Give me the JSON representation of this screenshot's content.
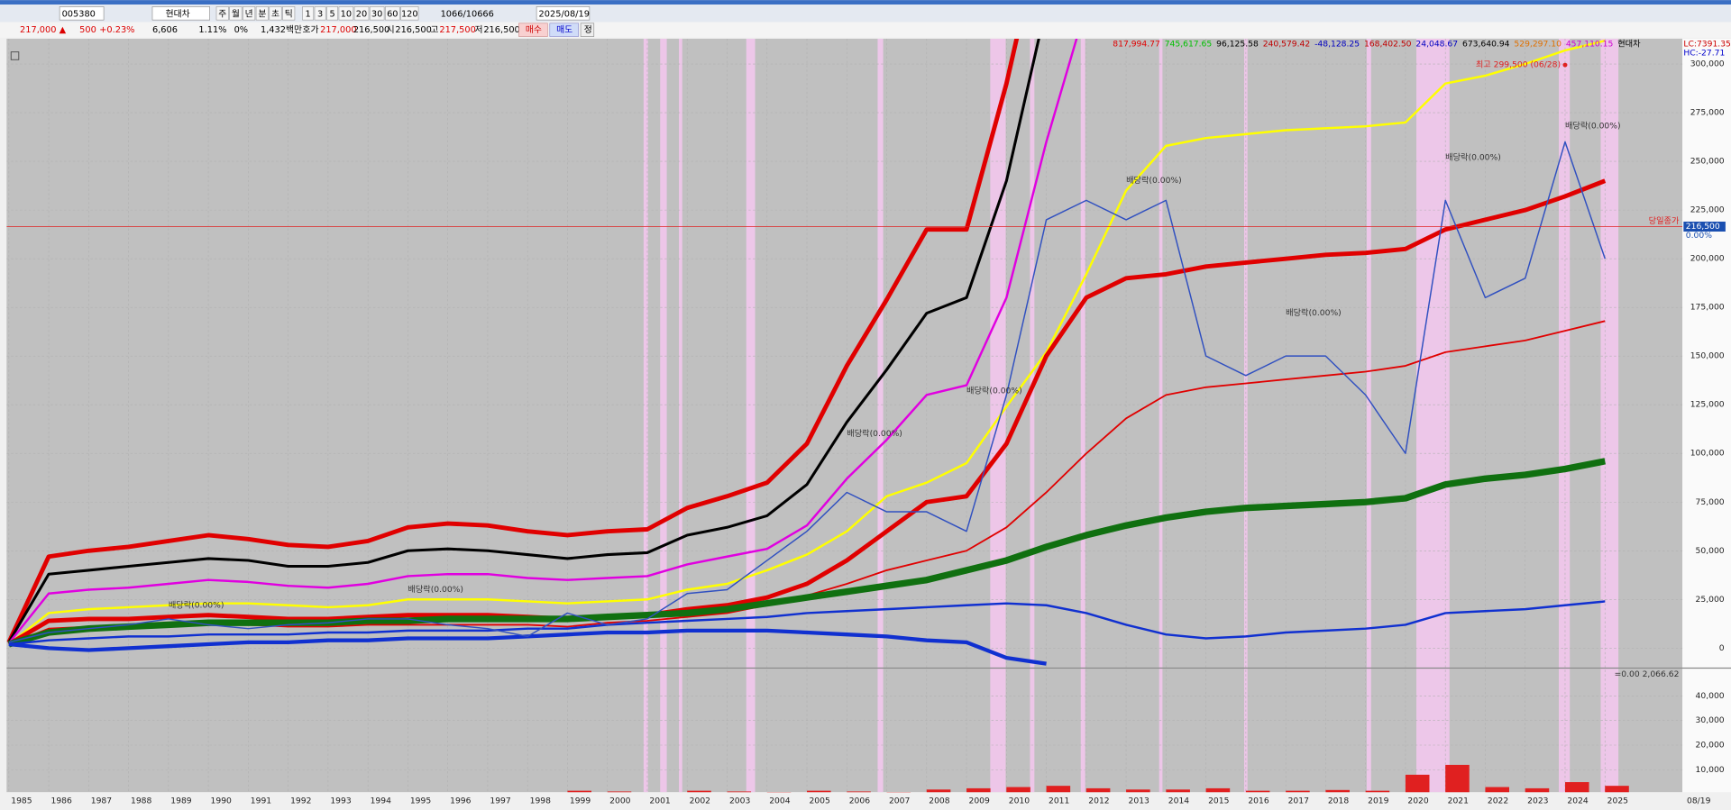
{
  "toolbar": {
    "code": "005380",
    "name": "현대차",
    "periods": [
      "주",
      "월",
      "년",
      "분",
      "초",
      "틱"
    ],
    "intervals": [
      "1",
      "3",
      "5",
      "10",
      "20",
      "30",
      "60",
      "120"
    ],
    "count": "1066/10666",
    "date": "2025/08/19"
  },
  "info": {
    "price": "217,000 ▲",
    "change": "500",
    "rate": "+0.23%",
    "volume": "6,606",
    "ratio": "1.11%",
    "pct": "0%",
    "amount": "1,432백만",
    "quote_label": "호가",
    "quote": "217,000",
    "quote2": "216,500",
    "open_label": "시",
    "open": "216,500",
    "high_label": "고",
    "high": "217,500",
    "low_label": "저",
    "low": "216,500",
    "buy": "매수",
    "sell": "매도",
    "fix": "정"
  },
  "chart_data": {
    "type": "line",
    "indicators": [
      {
        "text": "817,994.77",
        "color": "#e00000"
      },
      {
        "text": "745,617.65",
        "color": "#00c000"
      },
      {
        "text": "96,125.58",
        "color": "#000000"
      },
      {
        "text": "240,579.42",
        "color": "#c00000"
      },
      {
        "text": "-48,128.25",
        "color": "#0000c0"
      },
      {
        "text": "168,402.50",
        "color": "#c00000"
      },
      {
        "text": "24,048.67",
        "color": "#0000c0"
      },
      {
        "text": "673,640.94",
        "color": "#000000"
      },
      {
        "text": "529,297.10",
        "color": "#e07000"
      },
      {
        "text": "457,110.15",
        "color": "#d000d0"
      },
      {
        "text": "현대차",
        "color": "#000000"
      }
    ],
    "lc": "LC:7391.35",
    "hc": "HC:-27.71",
    "x": [
      1985,
      1986,
      1987,
      1988,
      1989,
      1990,
      1991,
      1992,
      1993,
      1994,
      1995,
      1996,
      1997,
      1998,
      1999,
      2000,
      2001,
      2002,
      2003,
      2004,
      2005,
      2006,
      2007,
      2008,
      2009,
      2010,
      2011,
      2012,
      2013,
      2014,
      2015,
      2016,
      2017,
      2018,
      2019,
      2020,
      2021,
      2022,
      2023,
      2024,
      2025
    ],
    "xlim": [
      1985,
      2026
    ],
    "xticks": [
      1985,
      1986,
      1987,
      1988,
      1989,
      1990,
      1991,
      1992,
      1993,
      1994,
      1995,
      1996,
      1997,
      1998,
      1999,
      2000,
      2001,
      2002,
      2003,
      2004,
      2005,
      2006,
      2007,
      2008,
      2009,
      2010,
      2011,
      2012,
      2013,
      2014,
      2015,
      2016,
      2017,
      2018,
      2019,
      2020,
      2021,
      2022,
      2023,
      2024,
      2025
    ],
    "date_label": "08/19",
    "ylim": [
      -10000,
      313000
    ],
    "yticks": [
      0,
      {
        "value": 25000,
        "label": "25,000"
      },
      {
        "value": 50000,
        "label": "50,000"
      },
      {
        "value": 75000,
        "label": "75,000"
      },
      {
        "value": 100000,
        "label": "100,000"
      },
      {
        "value": 125000,
        "label": "125,000"
      },
      {
        "value": 150000,
        "label": "150,000"
      },
      {
        "value": 175000,
        "label": "175,000"
      },
      {
        "value": 200000,
        "label": "200,000"
      },
      {
        "value": 225000,
        "label": "225,000"
      },
      {
        "value": 250000,
        "label": "250,000"
      },
      {
        "value": 275000,
        "label": "275,000"
      },
      {
        "value": 300000,
        "label": "300,000"
      }
    ],
    "grid": true,
    "current": {
      "value": 216500,
      "label": "216,500",
      "text": "당일종가",
      "rate": "0.00%",
      "color": "#e02020"
    },
    "high_note": {
      "text": "최고 299,500 (06/28)",
      "x": 2024,
      "y": 299500,
      "color": "#e02020"
    },
    "annotations": [
      {
        "text": "배당락(0.00%)",
        "x": 2006,
        "y": 110000
      },
      {
        "text": "배당락(0.00%)",
        "x": 2009,
        "y": 132000
      },
      {
        "text": "배당락(0.00%)",
        "x": 2013,
        "y": 240000
      },
      {
        "text": "배당락(0.00%)",
        "x": 2017,
        "y": 172000
      },
      {
        "text": "배당락(0.00%)",
        "x": 2021,
        "y": 252000
      },
      {
        "text": "배당락(0.00%)",
        "x": 2024,
        "y": 268000
      },
      {
        "text": "배당락(0.00%)",
        "x": 1989,
        "y": 22000
      },
      {
        "text": "배당락(0.00%)",
        "x": 1995,
        "y": 30000
      }
    ],
    "series": [
      {
        "name": "upper1",
        "color": "#e00000",
        "width": 4,
        "values": [
          3000,
          47000,
          50000,
          52000,
          55000,
          58000,
          56000,
          53000,
          52000,
          55000,
          62000,
          64000,
          63000,
          60000,
          58000,
          60000,
          61000,
          72000,
          78000,
          85000,
          105000,
          145000,
          179000,
          215000,
          215000,
          290000,
          380000,
          null,
          null,
          null,
          null,
          null,
          null,
          null,
          null,
          null,
          null,
          null,
          null,
          null,
          null
        ]
      },
      {
        "name": "upper2",
        "color": "#000000",
        "width": 2.5,
        "values": [
          3000,
          38000,
          40000,
          42000,
          44000,
          46000,
          45000,
          42000,
          42000,
          44000,
          50000,
          51000,
          50000,
          48000,
          46000,
          48000,
          49000,
          58000,
          62000,
          68000,
          84000,
          116000,
          143000,
          172000,
          180000,
          240000,
          330000,
          null,
          null,
          null,
          null,
          null,
          null,
          null,
          null,
          null,
          null,
          null,
          null,
          null,
          null
        ]
      },
      {
        "name": "upper3",
        "color": "#e000e0",
        "width": 2,
        "values": [
          2500,
          28000,
          30000,
          31000,
          33000,
          35000,
          34000,
          32000,
          31000,
          33000,
          37000,
          38000,
          38000,
          36000,
          35000,
          36000,
          37000,
          43000,
          47000,
          51000,
          63000,
          87000,
          107000,
          130000,
          135000,
          180000,
          260000,
          330000,
          null,
          null,
          null,
          null,
          null,
          null,
          null,
          null,
          null,
          null,
          null,
          null,
          null
        ]
      },
      {
        "name": "upper4",
        "color": "#ffff00",
        "width": 2,
        "values": [
          2000,
          18000,
          20000,
          21000,
          22000,
          23000,
          23000,
          22000,
          21000,
          22000,
          25000,
          25000,
          25000,
          24000,
          23000,
          24000,
          25000,
          30000,
          33000,
          40000,
          48000,
          60000,
          78000,
          85000,
          95000,
          124000,
          152000,
          192000,
          235000,
          258000,
          262000,
          264000,
          266000,
          267000,
          268000,
          270000,
          290000,
          294000,
          300000,
          307000,
          312000
        ]
      },
      {
        "name": "mid",
        "color": "#e00000",
        "width": 4,
        "values": [
          2000,
          14000,
          15000,
          15000,
          16000,
          17000,
          16000,
          15000,
          15000,
          16000,
          17000,
          17000,
          17000,
          16000,
          15000,
          16000,
          17000,
          20000,
          22000,
          26000,
          33000,
          45000,
          60000,
          75000,
          78000,
          105000,
          150000,
          180000,
          190000,
          192000,
          196000,
          198000,
          200000,
          202000,
          203000,
          205000,
          215000,
          220000,
          225000,
          232000,
          240000
        ]
      },
      {
        "name": "lower1",
        "color": "#e00000",
        "width": 1.5,
        "values": [
          2000,
          10000,
          11000,
          11000,
          12000,
          12000,
          12000,
          11000,
          11000,
          12000,
          12000,
          12000,
          12000,
          12000,
          11000,
          13000,
          14000,
          16000,
          18000,
          22000,
          27000,
          33000,
          40000,
          45000,
          50000,
          62000,
          80000,
          100000,
          118000,
          130000,
          134000,
          136000,
          138000,
          140000,
          142000,
          145000,
          152000,
          155000,
          158000,
          163000,
          168000
        ]
      },
      {
        "name": "lower2",
        "color": "#107010",
        "width": 6,
        "values": [
          2000,
          8000,
          10000,
          11000,
          12000,
          13000,
          13000,
          13000,
          13000,
          14000,
          14000,
          15000,
          15000,
          15000,
          15000,
          16000,
          17000,
          18000,
          20000,
          23000,
          26000,
          29000,
          32000,
          35000,
          40000,
          45000,
          52000,
          58000,
          63000,
          67000,
          70000,
          72000,
          73000,
          74000,
          75000,
          77000,
          84000,
          87000,
          89000,
          92000,
          96000
        ]
      },
      {
        "name": "lower3",
        "color": "#1030d0",
        "width": 2,
        "values": [
          2000,
          4000,
          5000,
          6000,
          6000,
          7000,
          7000,
          7000,
          8000,
          8000,
          9000,
          9000,
          9000,
          10000,
          10000,
          12000,
          13000,
          14000,
          15000,
          16000,
          18000,
          19000,
          20000,
          21000,
          22000,
          23000,
          22000,
          18000,
          12000,
          7000,
          5000,
          6000,
          8000,
          9000,
          10000,
          12000,
          18000,
          19000,
          20000,
          22000,
          24000
        ]
      },
      {
        "name": "lower4",
        "color": "#1030d0",
        "width": 3.5,
        "values": [
          2000,
          0,
          -1000,
          0,
          1000,
          2000,
          3000,
          3000,
          4000,
          4000,
          5000,
          5000,
          5000,
          6000,
          7000,
          8000,
          8000,
          9000,
          9000,
          9000,
          8000,
          7000,
          6000,
          4000,
          3000,
          -5000,
          -8000,
          null,
          null,
          null,
          null,
          null,
          null,
          null,
          null,
          null,
          null,
          null,
          null,
          null,
          null
        ]
      },
      {
        "name": "price",
        "color": "#3050c0",
        "width": 1.2,
        "values": [
          3000,
          8000,
          10000,
          12000,
          15000,
          12000,
          10000,
          12000,
          13000,
          15000,
          15000,
          12000,
          10000,
          6000,
          18000,
          12000,
          15000,
          28000,
          30000,
          45000,
          60000,
          80000,
          70000,
          70000,
          60000,
          130000,
          220000,
          230000,
          220000,
          230000,
          150000,
          140000,
          150000,
          150000,
          130000,
          100000,
          230000,
          180000,
          190000,
          260000,
          200000
        ]
      }
    ],
    "volume": {
      "color": "#e02020",
      "label": "=0.00 2,066.62",
      "ylim": [
        0,
        51000
      ],
      "yticks": [
        {
          "value": 10000,
          "label": "10,000"
        },
        {
          "value": 20000,
          "label": "20,000"
        },
        {
          "value": 30000,
          "label": "30,000"
        },
        {
          "value": 40000,
          "label": "40,000"
        }
      ],
      "values": [
        0,
        0,
        0,
        0,
        0,
        0,
        0,
        0,
        0,
        0,
        0,
        0,
        0,
        0,
        1500,
        1200,
        800,
        1500,
        1200,
        1000,
        1500,
        1200,
        1000,
        2000,
        2500,
        3000,
        3500,
        2500,
        2000,
        2000,
        2500,
        1500,
        1500,
        1800,
        1500,
        8000,
        12000,
        3000,
        2500,
        5000,
        3500
      ]
    }
  }
}
